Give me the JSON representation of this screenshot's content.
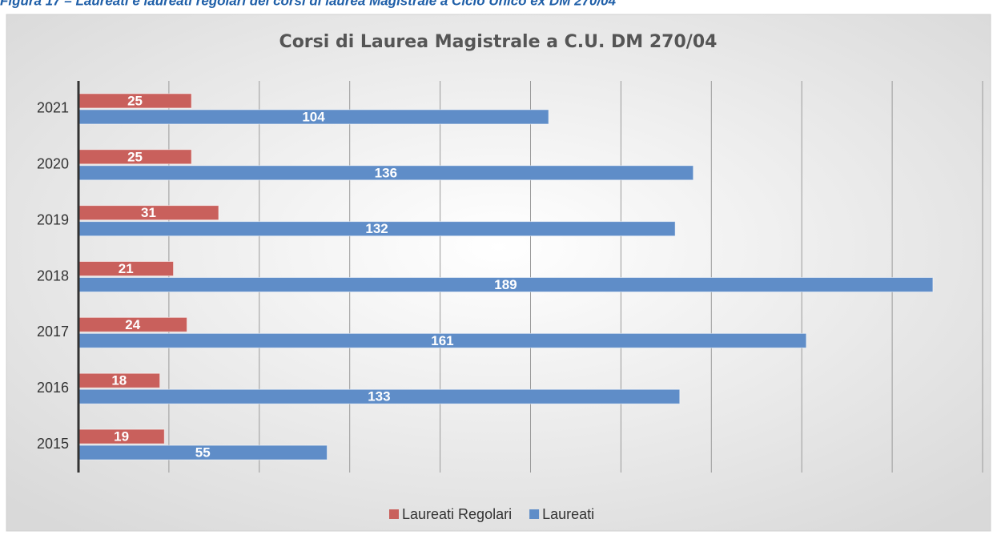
{
  "heading": "Figura 17 – Laureati e laureati regolari dei corsi di laurea Magistrale a Ciclo Unico ex DM 270/04",
  "chart_data": {
    "type": "hbar",
    "title": "Corsi di Laurea Magistrale a C.U. DM 270/04",
    "categories": [
      "2015",
      "2016",
      "2017",
      "2018",
      "2019",
      "2020",
      "2021"
    ],
    "series": [
      {
        "name": "Laureati Regolari",
        "color": "#c9605c",
        "values": [
          19,
          18,
          24,
          21,
          31,
          25,
          25
        ]
      },
      {
        "name": "Laureati",
        "color": "#5f8dc8",
        "values": [
          55,
          133,
          161,
          189,
          132,
          136,
          104
        ]
      }
    ],
    "xlim": [
      0,
      200
    ],
    "xticks": [
      0,
      20,
      40,
      60,
      80,
      100,
      120,
      140,
      160,
      180,
      200
    ],
    "grid": true,
    "legend": "bottom"
  }
}
